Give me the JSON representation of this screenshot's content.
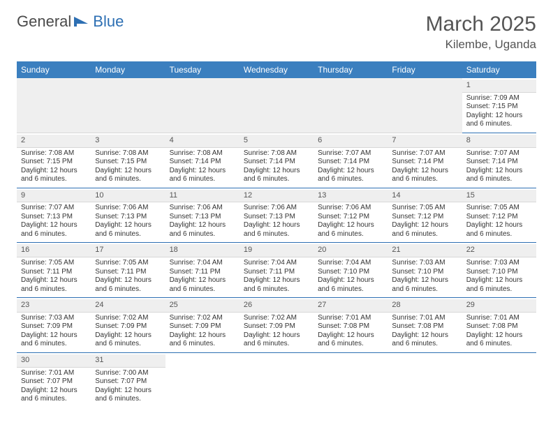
{
  "logo": {
    "text_left": "General",
    "text_right": "Blue",
    "shape_color": "#2d6fb3"
  },
  "title": "March 2025",
  "location": "Kilembe, Uganda",
  "colors": {
    "header_bg": "#3b7fbf",
    "header_text": "#ffffff",
    "row_divider": "#2d6fb3",
    "daynum_bg": "#efefef",
    "text": "#333333"
  },
  "day_headers": [
    "Sunday",
    "Monday",
    "Tuesday",
    "Wednesday",
    "Thursday",
    "Friday",
    "Saturday"
  ],
  "weeks": [
    [
      null,
      null,
      null,
      null,
      null,
      null,
      {
        "n": "1",
        "sr": "7:09 AM",
        "ss": "7:15 PM",
        "dl": "12 hours and 6 minutes."
      }
    ],
    [
      {
        "n": "2",
        "sr": "7:08 AM",
        "ss": "7:15 PM",
        "dl": "12 hours and 6 minutes."
      },
      {
        "n": "3",
        "sr": "7:08 AM",
        "ss": "7:15 PM",
        "dl": "12 hours and 6 minutes."
      },
      {
        "n": "4",
        "sr": "7:08 AM",
        "ss": "7:14 PM",
        "dl": "12 hours and 6 minutes."
      },
      {
        "n": "5",
        "sr": "7:08 AM",
        "ss": "7:14 PM",
        "dl": "12 hours and 6 minutes."
      },
      {
        "n": "6",
        "sr": "7:07 AM",
        "ss": "7:14 PM",
        "dl": "12 hours and 6 minutes."
      },
      {
        "n": "7",
        "sr": "7:07 AM",
        "ss": "7:14 PM",
        "dl": "12 hours and 6 minutes."
      },
      {
        "n": "8",
        "sr": "7:07 AM",
        "ss": "7:14 PM",
        "dl": "12 hours and 6 minutes."
      }
    ],
    [
      {
        "n": "9",
        "sr": "7:07 AM",
        "ss": "7:13 PM",
        "dl": "12 hours and 6 minutes."
      },
      {
        "n": "10",
        "sr": "7:06 AM",
        "ss": "7:13 PM",
        "dl": "12 hours and 6 minutes."
      },
      {
        "n": "11",
        "sr": "7:06 AM",
        "ss": "7:13 PM",
        "dl": "12 hours and 6 minutes."
      },
      {
        "n": "12",
        "sr": "7:06 AM",
        "ss": "7:13 PM",
        "dl": "12 hours and 6 minutes."
      },
      {
        "n": "13",
        "sr": "7:06 AM",
        "ss": "7:12 PM",
        "dl": "12 hours and 6 minutes."
      },
      {
        "n": "14",
        "sr": "7:05 AM",
        "ss": "7:12 PM",
        "dl": "12 hours and 6 minutes."
      },
      {
        "n": "15",
        "sr": "7:05 AM",
        "ss": "7:12 PM",
        "dl": "12 hours and 6 minutes."
      }
    ],
    [
      {
        "n": "16",
        "sr": "7:05 AM",
        "ss": "7:11 PM",
        "dl": "12 hours and 6 minutes."
      },
      {
        "n": "17",
        "sr": "7:05 AM",
        "ss": "7:11 PM",
        "dl": "12 hours and 6 minutes."
      },
      {
        "n": "18",
        "sr": "7:04 AM",
        "ss": "7:11 PM",
        "dl": "12 hours and 6 minutes."
      },
      {
        "n": "19",
        "sr": "7:04 AM",
        "ss": "7:11 PM",
        "dl": "12 hours and 6 minutes."
      },
      {
        "n": "20",
        "sr": "7:04 AM",
        "ss": "7:10 PM",
        "dl": "12 hours and 6 minutes."
      },
      {
        "n": "21",
        "sr": "7:03 AM",
        "ss": "7:10 PM",
        "dl": "12 hours and 6 minutes."
      },
      {
        "n": "22",
        "sr": "7:03 AM",
        "ss": "7:10 PM",
        "dl": "12 hours and 6 minutes."
      }
    ],
    [
      {
        "n": "23",
        "sr": "7:03 AM",
        "ss": "7:09 PM",
        "dl": "12 hours and 6 minutes."
      },
      {
        "n": "24",
        "sr": "7:02 AM",
        "ss": "7:09 PM",
        "dl": "12 hours and 6 minutes."
      },
      {
        "n": "25",
        "sr": "7:02 AM",
        "ss": "7:09 PM",
        "dl": "12 hours and 6 minutes."
      },
      {
        "n": "26",
        "sr": "7:02 AM",
        "ss": "7:09 PM",
        "dl": "12 hours and 6 minutes."
      },
      {
        "n": "27",
        "sr": "7:01 AM",
        "ss": "7:08 PM",
        "dl": "12 hours and 6 minutes."
      },
      {
        "n": "28",
        "sr": "7:01 AM",
        "ss": "7:08 PM",
        "dl": "12 hours and 6 minutes."
      },
      {
        "n": "29",
        "sr": "7:01 AM",
        "ss": "7:08 PM",
        "dl": "12 hours and 6 minutes."
      }
    ],
    [
      {
        "n": "30",
        "sr": "7:01 AM",
        "ss": "7:07 PM",
        "dl": "12 hours and 6 minutes."
      },
      {
        "n": "31",
        "sr": "7:00 AM",
        "ss": "7:07 PM",
        "dl": "12 hours and 6 minutes."
      },
      null,
      null,
      null,
      null,
      null
    ]
  ],
  "labels": {
    "sunrise": "Sunrise:",
    "sunset": "Sunset:",
    "daylight": "Daylight:"
  }
}
